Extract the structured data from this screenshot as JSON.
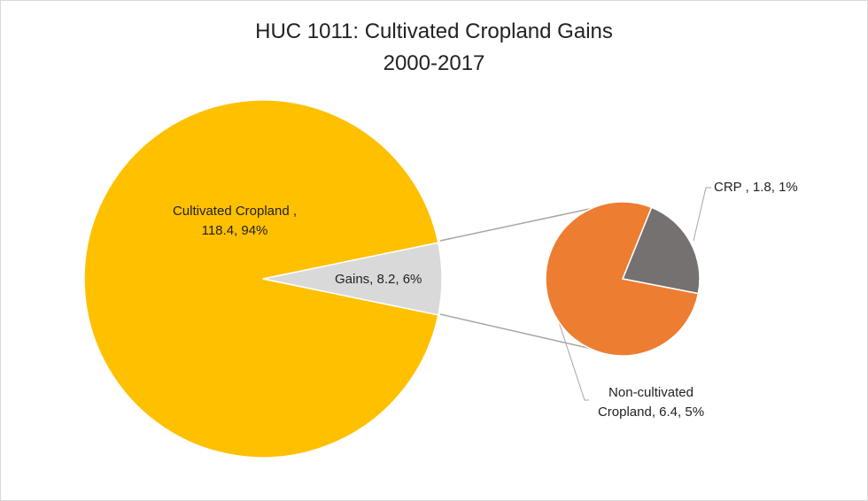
{
  "chart_data": {
    "type": "pie-of-pie",
    "title": "HUC 1011: Cultivated Cropland Gains",
    "subtitle": "2000-2017",
    "values": [
      118.4,
      8.2
    ],
    "value_labels": [
      "Cultivated Cropland , 118.4, 94%",
      "Gains, 8.2, 6%"
    ],
    "colors": [
      "#ffc000",
      "#d9d9d9"
    ],
    "secondary": {
      "values": [
        1.8,
        6.4
      ],
      "value_labels": [
        "CRP , 1.8, 1%",
        "Non-cultivated Cropland, 6.4, 5%"
      ],
      "colors": [
        "#767171",
        "#ed7d31"
      ]
    }
  }
}
